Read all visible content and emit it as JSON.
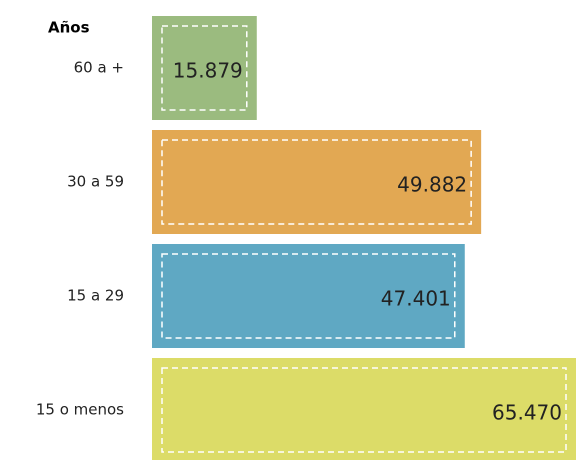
{
  "chart_data": {
    "type": "bar",
    "orientation": "horizontal",
    "y_label": "Años",
    "categories": [
      "60 a +",
      "30 a 59",
      "15 a 29",
      "15 o menos"
    ],
    "series": [
      {
        "colors": [
          "#9bbb7f",
          "#e2a853",
          "#5fa8c3",
          "#dcdc68"
        ],
        "values": [
          15879,
          49882,
          47401,
          65470
        ],
        "value_labels": [
          "15.879",
          "49.882",
          "47.401",
          "65.470"
        ]
      }
    ]
  }
}
